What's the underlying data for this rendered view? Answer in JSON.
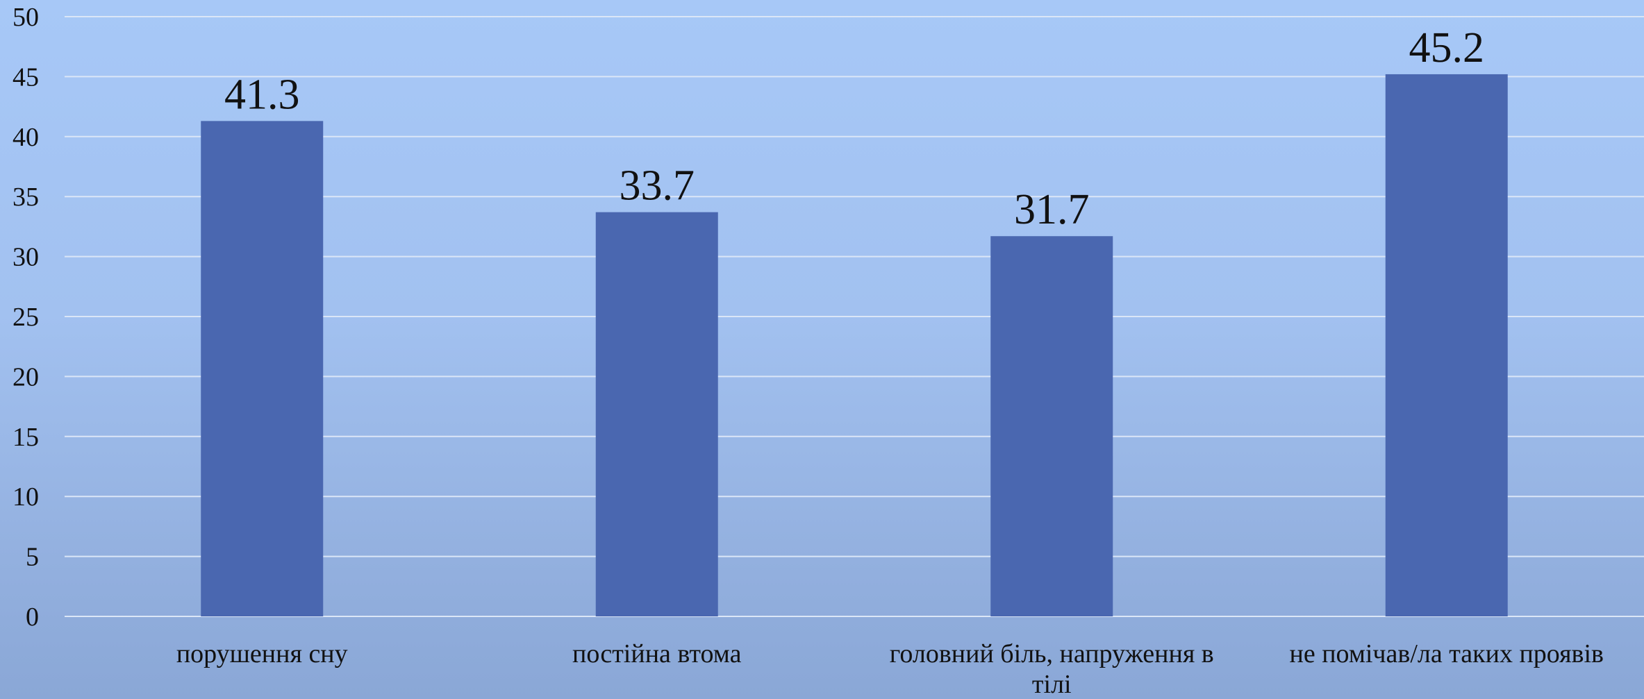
{
  "chart_data": {
    "type": "bar",
    "categories": [
      [
        "порушення сну"
      ],
      [
        "постійна втома"
      ],
      [
        "головний біль, напруження в",
        "тілі"
      ],
      [
        "не помічав/ла таких проявів"
      ]
    ],
    "values": [
      41.3,
      33.7,
      31.7,
      45.2
    ],
    "value_labels": [
      "41.3",
      "33.7",
      "31.7",
      "45.2"
    ],
    "yticks": [
      "0",
      "5",
      "10",
      "15",
      "20",
      "25",
      "30",
      "35",
      "40",
      "45",
      "50"
    ],
    "ylim": [
      0,
      50
    ],
    "grid": true,
    "colors": {
      "bar": "#4a67b0",
      "grid": "#dbe6f7"
    }
  }
}
